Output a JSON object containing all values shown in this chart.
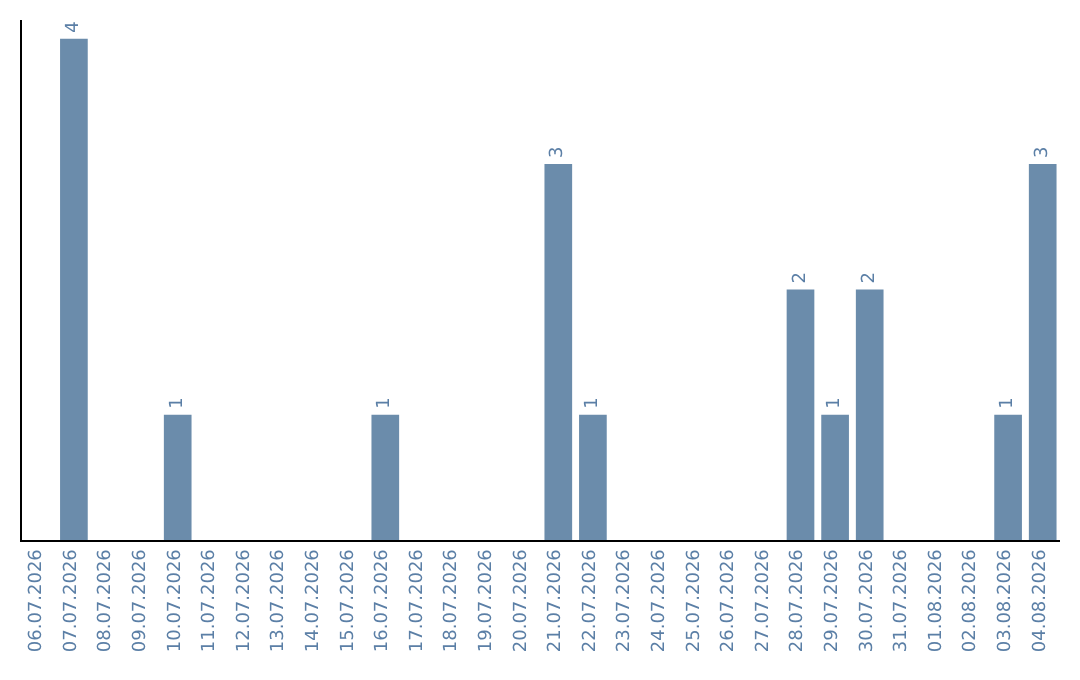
{
  "chart_data": {
    "type": "bar",
    "categories": [
      "06.07.2026",
      "07.07.2026",
      "08.07.2026",
      "09.07.2026",
      "10.07.2026",
      "11.07.2026",
      "12.07.2026",
      "13.07.2026",
      "14.07.2026",
      "15.07.2026",
      "16.07.2026",
      "17.07.2026",
      "18.07.2026",
      "19.07.2026",
      "20.07.2026",
      "21.07.2026",
      "22.07.2026",
      "23.07.2026",
      "24.07.2026",
      "25.07.2026",
      "26.07.2026",
      "27.07.2026",
      "28.07.2026",
      "29.07.2026",
      "30.07.2026",
      "31.07.2026",
      "01.08.2026",
      "02.08.2026",
      "03.08.2026",
      "04.08.2026"
    ],
    "values": [
      0,
      4,
      0,
      0,
      1,
      0,
      0,
      0,
      0,
      0,
      1,
      0,
      0,
      0,
      0,
      3,
      1,
      0,
      0,
      0,
      0,
      0,
      2,
      1,
      2,
      0,
      0,
      0,
      1,
      3
    ],
    "value_labels": [
      null,
      "4",
      null,
      null,
      "1",
      null,
      null,
      null,
      null,
      null,
      "1",
      null,
      null,
      null,
      null,
      "3",
      "1",
      null,
      null,
      null,
      null,
      null,
      "2",
      "1",
      "2",
      null,
      null,
      null,
      "1",
      "3"
    ],
    "color": "#6b8cab",
    "ylim": [
      0,
      4.15
    ],
    "tick_labels": "x",
    "legend": false
  }
}
